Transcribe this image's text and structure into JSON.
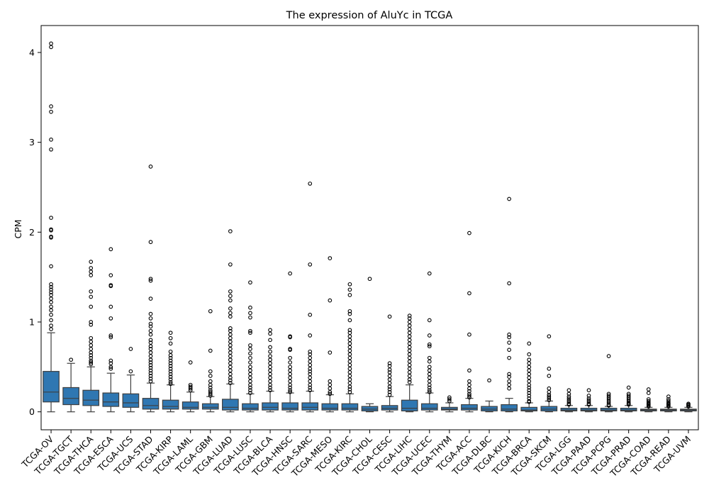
{
  "chart_data": {
    "type": "box",
    "title": "The expression of AluYc in TCGA",
    "xlabel": "",
    "ylabel": "CPM",
    "ylim": [
      -0.2,
      4.3
    ],
    "yticks": [
      0,
      1,
      2,
      3,
      4
    ],
    "box_color": "#2f77b2",
    "categories": [
      "TCGA-OV",
      "TCGA-TGCT",
      "TCGA-THCA",
      "TCGA-ESCA",
      "TCGA-UCS",
      "TCGA-STAD",
      "TCGA-KIRP",
      "TCGA-LAML",
      "TCGA-GBM",
      "TCGA-LUAD",
      "TCGA-LUSC",
      "TCGA-BLCA",
      "TCGA-HNSC",
      "TCGA-SARC",
      "TCGA-MESO",
      "TCGA-KIRC",
      "TCGA-CHOL",
      "TCGA-CESC",
      "TCGA-LIHC",
      "TCGA-UCEC",
      "TCGA-THYM",
      "TCGA-ACC",
      "TCGA-DLBC",
      "TCGA-KICH",
      "TCGA-BRCA",
      "TCGA-SKCM",
      "TCGA-LGG",
      "TCGA-PAAD",
      "TCGA-PCPG",
      "TCGA-PRAD",
      "TCGA-COAD",
      "TCGA-READ",
      "TCGA-UVM"
    ],
    "boxes": [
      {
        "min": 0.0,
        "q1": 0.11,
        "median": 0.22,
        "q3": 0.45,
        "max": 0.88,
        "outliers": [
          4.1,
          4.06,
          3.4,
          3.34,
          3.03,
          2.92,
          2.16,
          2.03,
          2.02,
          1.95,
          1.94,
          1.62,
          1.42,
          1.39,
          1.36,
          1.33,
          1.3,
          1.26,
          1.22,
          1.17,
          1.13,
          1.08,
          1.02,
          0.96,
          0.92
        ]
      },
      {
        "min": 0.0,
        "q1": 0.08,
        "median": 0.15,
        "q3": 0.27,
        "max": 0.54,
        "outliers": [
          0.58
        ]
      },
      {
        "min": 0.0,
        "q1": 0.07,
        "median": 0.13,
        "q3": 0.24,
        "max": 0.5,
        "outliers": [
          1.67,
          1.6,
          1.56,
          1.52,
          1.34,
          1.28,
          1.17,
          1.0,
          0.97,
          0.82,
          0.78,
          0.74,
          0.7,
          0.66,
          0.63,
          0.6,
          0.57,
          0.55,
          0.53
        ]
      },
      {
        "min": 0.0,
        "q1": 0.06,
        "median": 0.11,
        "q3": 0.21,
        "max": 0.43,
        "outliers": [
          1.81,
          1.52,
          1.41,
          1.4,
          1.17,
          1.04,
          0.85,
          0.83,
          0.57,
          0.54,
          0.5,
          0.48
        ]
      },
      {
        "min": 0.0,
        "q1": 0.05,
        "median": 0.1,
        "q3": 0.2,
        "max": 0.41,
        "outliers": [
          0.7,
          0.45
        ]
      },
      {
        "min": 0.0,
        "q1": 0.03,
        "median": 0.07,
        "q3": 0.15,
        "max": 0.32,
        "outliers": [
          2.73,
          1.89,
          1.48,
          1.46,
          1.26,
          1.09,
          1.04,
          0.98,
          0.95,
          0.9,
          0.86,
          0.8,
          0.77,
          0.73,
          0.7,
          0.66,
          0.62,
          0.58,
          0.55,
          0.52,
          0.49,
          0.46,
          0.43,
          0.4,
          0.37,
          0.34
        ]
      },
      {
        "min": 0.0,
        "q1": 0.03,
        "median": 0.06,
        "q3": 0.13,
        "max": 0.3,
        "outliers": [
          0.88,
          0.82,
          0.76,
          0.67,
          0.63,
          0.6,
          0.57,
          0.54,
          0.51,
          0.48,
          0.45,
          0.42,
          0.39,
          0.36,
          0.33,
          0.31
        ]
      },
      {
        "min": 0.0,
        "q1": 0.03,
        "median": 0.05,
        "q3": 0.11,
        "max": 0.22,
        "outliers": [
          0.55,
          0.3,
          0.28,
          0.26,
          0.24
        ]
      },
      {
        "min": 0.0,
        "q1": 0.03,
        "median": 0.05,
        "q3": 0.09,
        "max": 0.17,
        "outliers": [
          1.12,
          0.68,
          0.45,
          0.4,
          0.34,
          0.3,
          0.27,
          0.24,
          0.22,
          0.2,
          0.18
        ]
      },
      {
        "min": 0.0,
        "q1": 0.02,
        "median": 0.05,
        "q3": 0.14,
        "max": 0.31,
        "outliers": [
          2.01,
          1.64,
          1.34,
          1.29,
          1.24,
          1.15,
          1.1,
          1.06,
          0.93,
          0.9,
          0.86,
          0.82,
          0.78,
          0.74,
          0.7,
          0.66,
          0.62,
          0.58,
          0.54,
          0.5,
          0.46,
          0.42,
          0.38,
          0.35,
          0.32
        ]
      },
      {
        "min": 0.0,
        "q1": 0.02,
        "median": 0.04,
        "q3": 0.09,
        "max": 0.2,
        "outliers": [
          1.44,
          1.16,
          1.1,
          1.05,
          0.9,
          0.88,
          0.74,
          0.7,
          0.65,
          0.6,
          0.55,
          0.5,
          0.46,
          0.42,
          0.38,
          0.34,
          0.3,
          0.27,
          0.24,
          0.21
        ]
      },
      {
        "min": 0.0,
        "q1": 0.02,
        "median": 0.05,
        "q3": 0.1,
        "max": 0.23,
        "outliers": [
          0.91,
          0.87,
          0.8,
          0.72,
          0.67,
          0.62,
          0.58,
          0.54,
          0.5,
          0.46,
          0.42,
          0.38,
          0.34,
          0.3,
          0.27,
          0.24
        ]
      },
      {
        "min": 0.0,
        "q1": 0.02,
        "median": 0.04,
        "q3": 0.1,
        "max": 0.21,
        "outliers": [
          1.54,
          0.84,
          0.83,
          0.7,
          0.69,
          0.6,
          0.55,
          0.5,
          0.46,
          0.42,
          0.38,
          0.34,
          0.3,
          0.27,
          0.24,
          0.22
        ]
      },
      {
        "min": 0.0,
        "q1": 0.02,
        "median": 0.05,
        "q3": 0.1,
        "max": 0.23,
        "outliers": [
          2.54,
          1.64,
          1.08,
          0.85,
          0.67,
          0.64,
          0.6,
          0.56,
          0.52,
          0.48,
          0.45,
          0.42,
          0.38,
          0.34,
          0.3,
          0.27,
          0.24
        ]
      },
      {
        "min": 0.0,
        "q1": 0.02,
        "median": 0.04,
        "q3": 0.09,
        "max": 0.19,
        "outliers": [
          1.71,
          1.24,
          0.66,
          0.34,
          0.3,
          0.26,
          0.22,
          0.2
        ]
      },
      {
        "min": 0.0,
        "q1": 0.02,
        "median": 0.04,
        "q3": 0.09,
        "max": 0.2,
        "outliers": [
          1.42,
          1.36,
          1.3,
          1.12,
          1.09,
          1.02,
          0.91,
          0.88,
          0.84,
          0.8,
          0.76,
          0.72,
          0.68,
          0.64,
          0.6,
          0.56,
          0.52,
          0.48,
          0.44,
          0.4,
          0.36,
          0.32,
          0.28,
          0.25,
          0.22
        ]
      },
      {
        "min": 0.0,
        "q1": 0.01,
        "median": 0.03,
        "q3": 0.06,
        "max": 0.09,
        "outliers": [
          1.48
        ]
      },
      {
        "min": 0.0,
        "q1": 0.02,
        "median": 0.04,
        "q3": 0.07,
        "max": 0.17,
        "outliers": [
          1.06,
          0.54,
          0.51,
          0.47,
          0.44,
          0.4,
          0.36,
          0.32,
          0.28,
          0.25,
          0.22,
          0.19
        ]
      },
      {
        "min": 0.0,
        "q1": 0.01,
        "median": 0.04,
        "q3": 0.13,
        "max": 0.3,
        "outliers": [
          1.07,
          1.04,
          1.0,
          0.96,
          0.92,
          0.88,
          0.84,
          0.8,
          0.76,
          0.72,
          0.68,
          0.64,
          0.6,
          0.56,
          0.52,
          0.48,
          0.44,
          0.4,
          0.36,
          0.33
        ]
      },
      {
        "min": 0.0,
        "q1": 0.02,
        "median": 0.04,
        "q3": 0.09,
        "max": 0.21,
        "outliers": [
          1.54,
          1.02,
          0.85,
          0.75,
          0.73,
          0.6,
          0.56,
          0.5,
          0.46,
          0.42,
          0.38,
          0.34,
          0.3,
          0.27,
          0.24,
          0.22
        ]
      },
      {
        "min": 0.0,
        "q1": 0.02,
        "median": 0.03,
        "q3": 0.05,
        "max": 0.1,
        "outliers": [
          0.16,
          0.14,
          0.12
        ]
      },
      {
        "min": 0.0,
        "q1": 0.02,
        "median": 0.04,
        "q3": 0.08,
        "max": 0.15,
        "outliers": [
          1.99,
          1.32,
          0.86,
          0.46,
          0.34,
          0.3,
          0.26,
          0.23,
          0.2,
          0.18,
          0.16
        ]
      },
      {
        "min": 0.0,
        "q1": 0.01,
        "median": 0.03,
        "q3": 0.06,
        "max": 0.12,
        "outliers": [
          0.35
        ]
      },
      {
        "min": 0.0,
        "q1": 0.01,
        "median": 0.03,
        "q3": 0.08,
        "max": 0.15,
        "outliers": [
          2.37,
          1.43,
          0.86,
          0.83,
          0.77,
          0.69,
          0.6,
          0.42,
          0.39,
          0.34,
          0.3,
          0.26
        ]
      },
      {
        "min": 0.0,
        "q1": 0.01,
        "median": 0.02,
        "q3": 0.05,
        "max": 0.1,
        "outliers": [
          0.76,
          0.64,
          0.58,
          0.54,
          0.5,
          0.46,
          0.42,
          0.38,
          0.34,
          0.3,
          0.27,
          0.24,
          0.21,
          0.18,
          0.15,
          0.12,
          0.11
        ]
      },
      {
        "min": 0.0,
        "q1": 0.01,
        "median": 0.03,
        "q3": 0.06,
        "max": 0.12,
        "outliers": [
          0.84,
          0.48,
          0.4,
          0.26,
          0.22,
          0.19,
          0.17,
          0.15,
          0.13
        ]
      },
      {
        "min": 0.0,
        "q1": 0.01,
        "median": 0.02,
        "q3": 0.04,
        "max": 0.07,
        "outliers": [
          0.24,
          0.2,
          0.17,
          0.15,
          0.13,
          0.11,
          0.09,
          0.08
        ]
      },
      {
        "min": 0.0,
        "q1": 0.01,
        "median": 0.02,
        "q3": 0.04,
        "max": 0.07,
        "outliers": [
          0.24,
          0.18,
          0.15,
          0.13,
          0.11,
          0.09,
          0.08
        ]
      },
      {
        "min": 0.0,
        "q1": 0.01,
        "median": 0.02,
        "q3": 0.04,
        "max": 0.06,
        "outliers": [
          0.62,
          0.2,
          0.18,
          0.16,
          0.14,
          0.12,
          0.1,
          0.08,
          0.07
        ]
      },
      {
        "min": 0.0,
        "q1": 0.01,
        "median": 0.02,
        "q3": 0.04,
        "max": 0.07,
        "outliers": [
          0.27,
          0.2,
          0.18,
          0.16,
          0.14,
          0.12,
          0.1,
          0.09,
          0.08
        ]
      },
      {
        "min": 0.0,
        "q1": 0.01,
        "median": 0.02,
        "q3": 0.03,
        "max": 0.05,
        "outliers": [
          0.25,
          0.21,
          0.14,
          0.12,
          0.1,
          0.09,
          0.08,
          0.07,
          0.06
        ]
      },
      {
        "min": 0.0,
        "q1": 0.01,
        "median": 0.02,
        "q3": 0.03,
        "max": 0.05,
        "outliers": [
          0.17,
          0.14,
          0.12,
          0.1,
          0.09,
          0.08,
          0.07,
          0.06
        ]
      },
      {
        "min": 0.0,
        "q1": 0.01,
        "median": 0.02,
        "q3": 0.03,
        "max": 0.05,
        "outliers": [
          0.09,
          0.08,
          0.07,
          0.06
        ]
      }
    ]
  }
}
